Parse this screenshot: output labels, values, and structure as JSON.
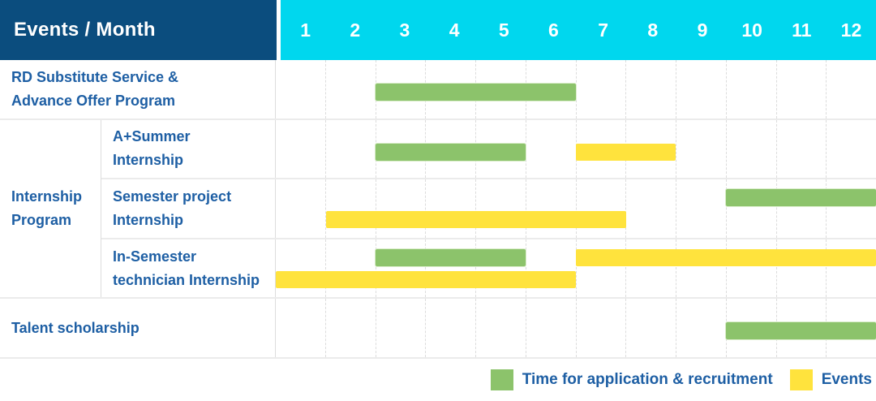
{
  "header": {
    "title": "Events / Month",
    "months": [
      "1",
      "2",
      "3",
      "4",
      "5",
      "6",
      "7",
      "8",
      "9",
      "10",
      "11",
      "12"
    ]
  },
  "colors": {
    "header_bg": "#0B4D7E",
    "months_bg": "#00D7EE",
    "application_green": "#8CC36B",
    "events_yellow": "#FFE33D",
    "label_text": "#1E5FA4"
  },
  "legend": {
    "items": [
      {
        "kind": "application",
        "label": "Time for application & recruitment",
        "color": "#8CC36B"
      },
      {
        "kind": "events",
        "label": "Events",
        "color": "#FFE33D"
      }
    ]
  },
  "chart_data": {
    "type": "gantt",
    "unit": "month",
    "x_domain": [
      1,
      12
    ],
    "x_ticks": [
      "1",
      "2",
      "3",
      "4",
      "5",
      "6",
      "7",
      "8",
      "9",
      "10",
      "11",
      "12"
    ],
    "bar_kinds": {
      "application": {
        "label": "Time for application & recruitment",
        "color": "#8CC36B"
      },
      "events": {
        "label": "Events",
        "color": "#FFE33D"
      }
    },
    "sections": [
      {
        "type": "row",
        "label": "RD Substitute Service & Advance Offer Program",
        "label_lines": [
          "RD Substitute Service &",
          "Advance Offer Program"
        ],
        "lanes": 1,
        "bars": [
          {
            "kind": "application",
            "start": 3,
            "end": 6,
            "lane": 1
          }
        ]
      },
      {
        "type": "group",
        "group": "Internship Program",
        "group_lines": [
          "Internship",
          "Program"
        ],
        "rows": [
          {
            "label": "A+Summer Internship",
            "label_lines": [
              "A+Summer",
              "Internship"
            ],
            "lanes": 1,
            "bars": [
              {
                "kind": "application",
                "start": 3,
                "end": 5,
                "lane": 1
              },
              {
                "kind": "events",
                "start": 7,
                "end": 8,
                "lane": 1
              }
            ]
          },
          {
            "label": "Semester project Internship",
            "label_lines": [
              "Semester project",
              "Internship"
            ],
            "lanes": 2,
            "bars": [
              {
                "kind": "application",
                "start": 10,
                "end": 12,
                "lane": 1
              },
              {
                "kind": "events",
                "start": 2,
                "end": 7,
                "lane": 2
              }
            ]
          },
          {
            "label": "In-Semester technician Internship",
            "label_lines": [
              "In-Semester",
              "technician Internship"
            ],
            "lanes": 2,
            "bars": [
              {
                "kind": "application",
                "start": 3,
                "end": 5,
                "lane": 1
              },
              {
                "kind": "events",
                "start": 7,
                "end": 12,
                "lane": 1
              },
              {
                "kind": "events",
                "start": 1,
                "end": 6,
                "lane": 2
              }
            ]
          }
        ]
      },
      {
        "type": "row",
        "label": "Talent scholarship",
        "label_lines": [
          "Talent scholarship"
        ],
        "lanes": 1,
        "bars": [
          {
            "kind": "application",
            "start": 10,
            "end": 12,
            "lane": 1
          }
        ]
      }
    ]
  }
}
